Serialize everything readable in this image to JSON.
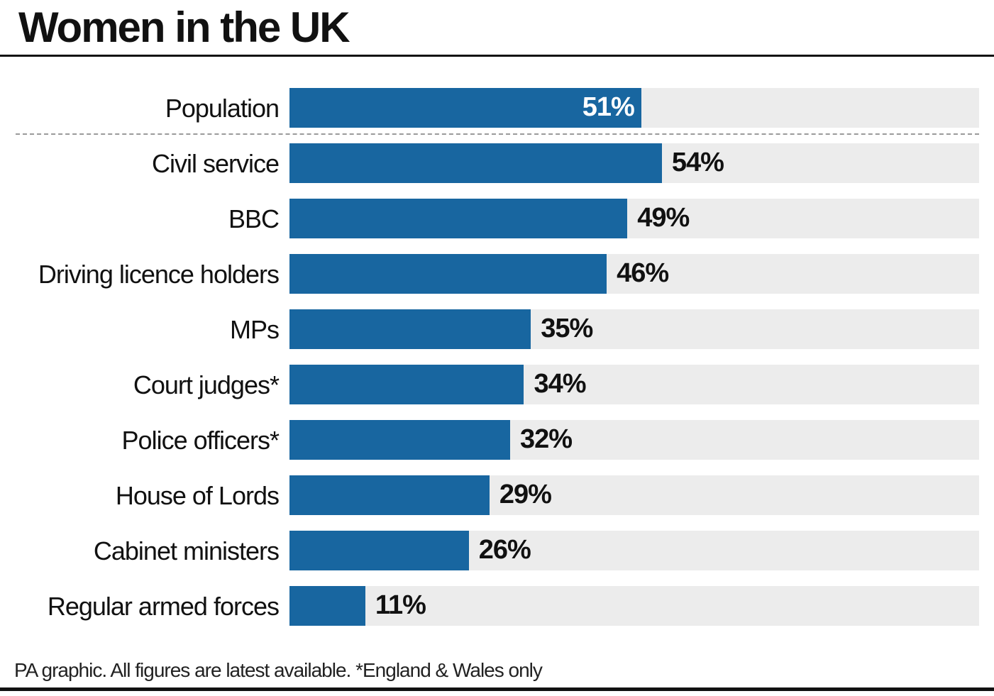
{
  "chart_data": {
    "type": "bar",
    "orientation": "horizontal",
    "title": "Women in the UK",
    "xlabel": "",
    "ylabel": "",
    "xlim": [
      0,
      100
    ],
    "unit": "%",
    "categories": [
      "Population",
      "Civil service",
      "BBC",
      "Driving licence holders",
      "MPs",
      "Court judges*",
      "Police officers*",
      "House of Lords",
      "Cabinet ministers",
      "Regular armed forces"
    ],
    "values": [
      51,
      54,
      49,
      46,
      35,
      34,
      32,
      29,
      26,
      11
    ],
    "value_labels": [
      "51%",
      "54%",
      "49%",
      "46%",
      "35%",
      "34%",
      "32%",
      "29%",
      "26%",
      "11%"
    ],
    "reference_rows": 1,
    "colors": {
      "bar": "#1866a0",
      "track": "#ececec"
    },
    "footnote": "PA graphic. All figures are latest available. *England & Wales only"
  }
}
